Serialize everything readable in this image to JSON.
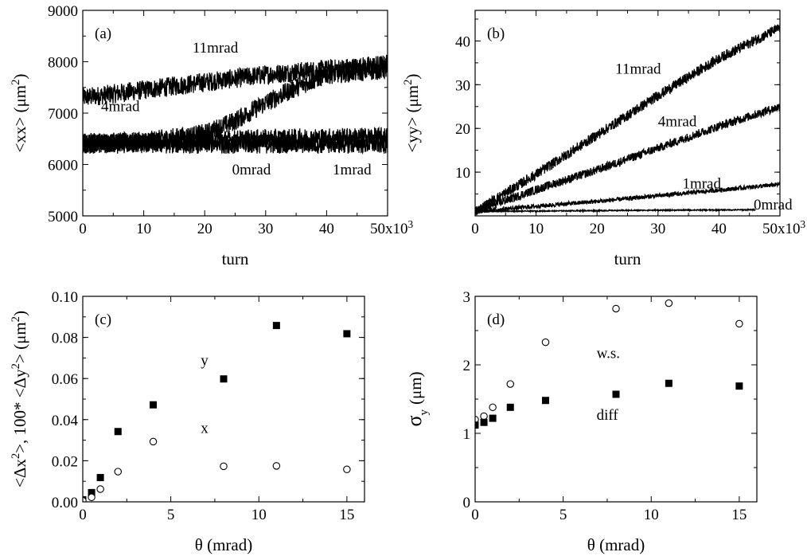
{
  "chart_data": [
    {
      "id": "a",
      "type": "line",
      "panel_label": "(a)",
      "xlabel": "turn",
      "ylabel": "<xx> (μm²)",
      "xlim": [
        0,
        50000
      ],
      "ylim": [
        5000,
        9000
      ],
      "xticks": [
        0,
        10000,
        20000,
        30000,
        40000,
        50000
      ],
      "xtick_labels": [
        "0",
        "10",
        "20",
        "30",
        "40",
        "50x10³"
      ],
      "yticks": [
        5000,
        6000,
        7000,
        8000,
        9000
      ],
      "ytick_labels": [
        "5000",
        "6000",
        "7000",
        "8000",
        "9000"
      ],
      "series": [
        {
          "name": "11mrad",
          "x": [
            0,
            10000,
            20000,
            30000,
            40000,
            50000
          ],
          "y": [
            7300,
            7450,
            7600,
            7750,
            7850,
            7950
          ],
          "noise": 380,
          "color": "#000000"
        },
        {
          "name": "4mrad",
          "x": [
            0,
            10000,
            20000,
            25000,
            30000,
            35000,
            40000,
            50000
          ],
          "y": [
            6400,
            6450,
            6600,
            6850,
            7200,
            7500,
            7750,
            7850
          ],
          "noise": 380,
          "color": "#000000"
        },
        {
          "name": "0mrad",
          "x": [
            0,
            10000,
            20000,
            30000,
            40000,
            50000
          ],
          "y": [
            6400,
            6400,
            6400,
            6400,
            6400,
            6400
          ],
          "noise": 380,
          "color": "#000000"
        },
        {
          "name": "1mrad",
          "x": [
            0,
            10000,
            20000,
            30000,
            40000,
            50000
          ],
          "y": [
            6420,
            6440,
            6470,
            6500,
            6520,
            6540
          ],
          "noise": 380,
          "color": "#000000"
        }
      ],
      "annotations": [
        {
          "text": "11mrad",
          "x": 18000,
          "y": 8180
        },
        {
          "text": "4mrad",
          "x": 3000,
          "y": 7040
        },
        {
          "text": "0mrad",
          "x": 24500,
          "y": 5810
        },
        {
          "text": "1mrad",
          "x": 41000,
          "y": 5810
        }
      ]
    },
    {
      "id": "b",
      "type": "line",
      "panel_label": "(b)",
      "xlabel": "turn",
      "ylabel": "<yy> (μm²)",
      "xlim": [
        0,
        50000
      ],
      "ylim": [
        0,
        47
      ],
      "xticks": [
        0,
        10000,
        20000,
        30000,
        40000,
        50000
      ],
      "xtick_labels": [
        "0",
        "10",
        "20",
        "30",
        "40",
        "50x10³"
      ],
      "yticks": [
        10,
        20,
        30,
        40
      ],
      "ytick_labels": [
        "10",
        "20",
        "30",
        "40"
      ],
      "series": [
        {
          "name": "11mrad",
          "x": [
            0,
            10000,
            20000,
            30000,
            40000,
            50000
          ],
          "y": [
            1,
            9.5,
            18.5,
            27.5,
            36,
            43
          ],
          "noise": 2.4,
          "color": "#000000"
        },
        {
          "name": "4mrad",
          "x": [
            0,
            10000,
            20000,
            30000,
            40000,
            50000
          ],
          "y": [
            1,
            6,
            10.5,
            15.5,
            20.5,
            25
          ],
          "noise": 2.0,
          "color": "#000000"
        },
        {
          "name": "1mrad",
          "x": [
            0,
            10000,
            20000,
            30000,
            40000,
            50000
          ],
          "y": [
            1,
            2.2,
            3.3,
            4.6,
            5.9,
            7.2
          ],
          "noise": 1.0,
          "color": "#000000"
        },
        {
          "name": "0mrad",
          "x": [
            0,
            10000,
            20000,
            30000,
            40000,
            46000
          ],
          "y": [
            1,
            1.1,
            1.2,
            1.3,
            1.35,
            1.4
          ],
          "noise": 0.25,
          "color": "#000000"
        }
      ],
      "annotations": [
        {
          "text": "11mrad",
          "x": 23000,
          "y": 32.5
        },
        {
          "text": "4mrad",
          "x": 30000,
          "y": 20.5
        },
        {
          "text": "1mrad",
          "x": 34000,
          "y": 6.3
        },
        {
          "text": "0mrad",
          "x": 45700,
          "y": 1.5
        }
      ]
    },
    {
      "id": "c",
      "type": "scatter",
      "panel_label": "(c)",
      "xlabel": "θ (mrad)",
      "ylabel": "<Δx²>, 100* <Δy²> (μm²)",
      "xlim": [
        0,
        16
      ],
      "ylim": [
        0,
        0.1
      ],
      "xticks": [
        0,
        5,
        10,
        15
      ],
      "xtick_labels": [
        "0",
        "5",
        "10",
        "15"
      ],
      "yticks": [
        0,
        0.02,
        0.04,
        0.06,
        0.08,
        0.1
      ],
      "ytick_labels": [
        "0.00",
        "0.02",
        "0.04",
        "0.06",
        "0.08",
        "0.10"
      ],
      "series": [
        {
          "name": "y",
          "marker": "square-filled",
          "x": [
            0,
            0.5,
            1,
            2,
            4,
            8,
            11,
            15
          ],
          "y": [
            0.001,
            0.0045,
            0.0118,
            0.0342,
            0.0472,
            0.0598,
            0.0858,
            0.0818
          ]
        },
        {
          "name": "x",
          "marker": "circle-open",
          "x": [
            0,
            0.5,
            1,
            2,
            4,
            8,
            11,
            15
          ],
          "y": [
            0.0005,
            0.0022,
            0.0062,
            0.0147,
            0.0293,
            0.0173,
            0.0175,
            0.0158
          ]
        }
      ],
      "annotations": [
        {
          "text": "y",
          "x": 6.7,
          "y": 0.0665
        },
        {
          "text": "x",
          "x": 6.7,
          "y": 0.0335
        }
      ]
    },
    {
      "id": "d",
      "type": "scatter",
      "panel_label": "(d)",
      "xlabel": "θ (mrad)",
      "ylabel": "σ",
      "ylabel_sub": "y",
      "ylabel_unit": "(μm)",
      "xlim": [
        0,
        16
      ],
      "ylim": [
        0,
        3
      ],
      "xticks": [
        0,
        5,
        10,
        15
      ],
      "xtick_labels": [
        "0",
        "5",
        "10",
        "15"
      ],
      "yticks": [
        0,
        1,
        2,
        3
      ],
      "ytick_labels": [
        "0",
        "1",
        "2",
        "3"
      ],
      "series": [
        {
          "name": "w.s.",
          "marker": "circle-open",
          "x": [
            0,
            0.5,
            1,
            2,
            4,
            8,
            11,
            15
          ],
          "y": [
            1.2,
            1.25,
            1.38,
            1.72,
            2.33,
            2.82,
            2.9,
            2.6
          ]
        },
        {
          "name": "diff",
          "marker": "square-filled",
          "x": [
            0,
            0.5,
            1,
            2,
            4,
            8,
            11,
            15
          ],
          "y": [
            1.12,
            1.16,
            1.22,
            1.38,
            1.48,
            1.57,
            1.73,
            1.69
          ]
        }
      ],
      "annotations": [
        {
          "text": "w.s.",
          "x": 6.9,
          "y": 2.1
        },
        {
          "text": "diff",
          "x": 6.9,
          "y": 1.2
        }
      ]
    }
  ]
}
